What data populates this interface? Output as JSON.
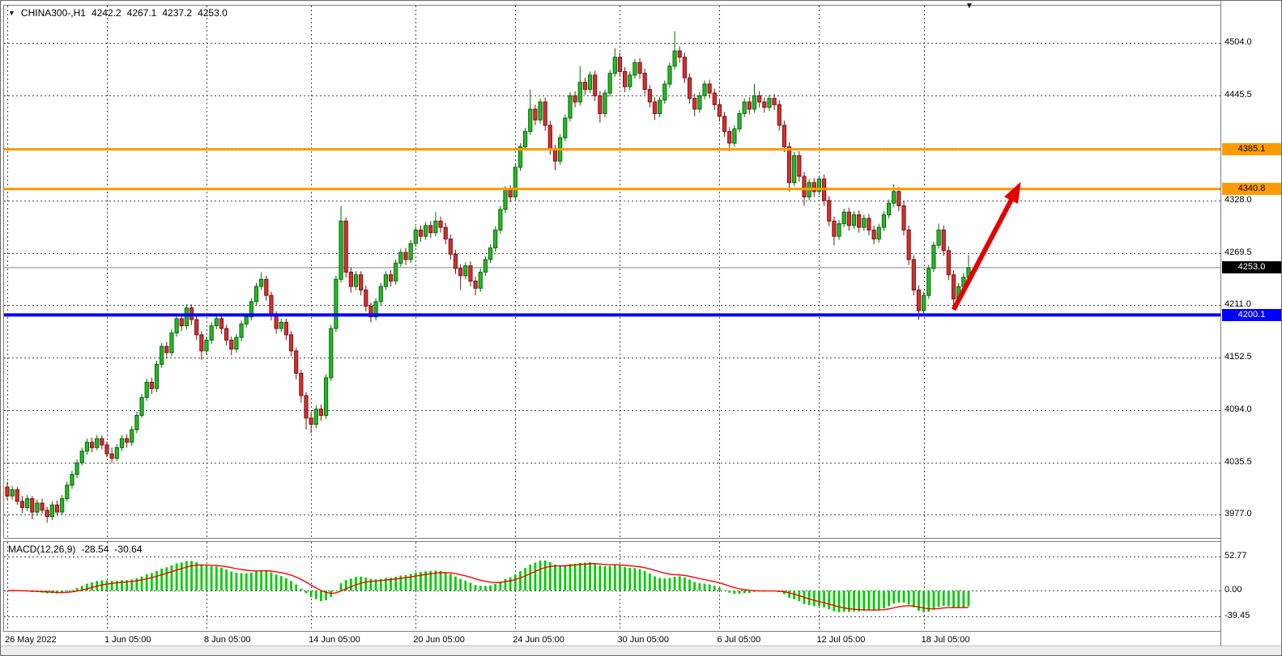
{
  "header": {
    "title": "CHINA300-,H1",
    "open": "4242.2",
    "high": "4267.1",
    "low": "4237.2",
    "close": "4253.0"
  },
  "ui": {
    "header_marker": "▼",
    "shift_marker": "▼"
  },
  "colors": {
    "up": "#28b828",
    "up_edge": "#066a06",
    "down": "#d43030",
    "down_edge": "#7a1414",
    "grid": "#4a4a4a",
    "hline_orange": "#ff9b00",
    "hline_blue": "#0000ff",
    "macd_hist": "#00cc00",
    "macd_signal": "#ff0000",
    "arrow": "#e60000",
    "current_line": "#888888"
  },
  "chart_data": {
    "type": "candlestick",
    "symbol": "CHINA300-",
    "timeframe": "H1",
    "title": "CHINA300-,H1",
    "last_ohlc": {
      "open": 4242.2,
      "high": 4267.1,
      "low": 4237.2,
      "close": 4253.0
    },
    "price_axis": {
      "gridlines": [
        4504.0,
        4445.5,
        4387.0,
        4328.0,
        4269.5,
        4211.0,
        4152.5,
        4094.0,
        4035.5,
        3977.0
      ],
      "labels": [
        {
          "text": "4504.0",
          "price": 4504.0
        },
        {
          "text": "4445.5",
          "price": 4445.5
        },
        {
          "text": "4328.0",
          "price": 4328.0
        },
        {
          "text": "4269.5",
          "price": 4269.5
        },
        {
          "text": "4211.0",
          "price": 4211.0
        },
        {
          "text": "4152.5",
          "price": 4152.5
        },
        {
          "text": "4094.0",
          "price": 4094.0
        },
        {
          "text": "4035.5",
          "price": 4035.5
        },
        {
          "text": "3977.0",
          "price": 3977.0
        }
      ]
    },
    "time_axis": {
      "ticks": [
        {
          "bar": 0,
          "label": "26 May 2022"
        },
        {
          "bar": 20,
          "label": "1 Jun 05:00"
        },
        {
          "bar": 40,
          "label": "8 Jun 05:00"
        },
        {
          "bar": 61,
          "label": "14 Jun 05:00"
        },
        {
          "bar": 82,
          "label": "20 Jun 05:00"
        },
        {
          "bar": 102,
          "label": "24 Jun 05:00"
        },
        {
          "bar": 123,
          "label": "30 Jun 05:00"
        },
        {
          "bar": 143,
          "label": "6 Jul 05:00"
        },
        {
          "bar": 163,
          "label": "12 Jul 05:00"
        },
        {
          "bar": 184,
          "label": "18 Jul 05:00"
        }
      ]
    },
    "lines": [
      {
        "name": "resistance-line-1",
        "price": 4385.1,
        "label": "4385.1",
        "color": "#ff9b00",
        "width": 3
      },
      {
        "name": "resistance-line-2",
        "price": 4340.8,
        "label": "4340.8",
        "color": "#ff9b00",
        "width": 3
      },
      {
        "name": "support-line",
        "price": 4200.1,
        "label": "4200.1",
        "color": "#0000ff",
        "width": 4
      }
    ],
    "current_price": {
      "price": 4253.0,
      "label": "4253.0"
    },
    "arrow": {
      "from_bar": 190,
      "from_price": 4206,
      "to_bar": 203.5,
      "to_price": 4349,
      "color": "#e60000"
    },
    "indicator": {
      "label": "MACD(12,26,9)",
      "fast": 12,
      "slow": 26,
      "signal_period": 9,
      "value_main": "-28.54",
      "value_signal": "-30.64",
      "axis": [
        {
          "text": "52.77",
          "value": 52.77
        },
        {
          "text": "0.00",
          "value": 0.0
        },
        {
          "text": "-39.45",
          "value": -39.45
        }
      ],
      "note": "histogram (MACD line) and red signal line are computed from candle closes with periods 12/26/9"
    },
    "candles": [
      [
        4008,
        4014,
        3994,
        3998
      ],
      [
        3998,
        4009,
        3994,
        4005
      ],
      [
        4005,
        4008,
        3988,
        3992
      ],
      [
        3992,
        3998,
        3979,
        3985
      ],
      [
        3985,
        3999,
        3981,
        3995
      ],
      [
        3995,
        3998,
        3972,
        3980
      ],
      [
        3980,
        3994,
        3976,
        3990
      ],
      [
        3990,
        3995,
        3978,
        3982
      ],
      [
        3982,
        3986,
        3968,
        3975
      ],
      [
        3975,
        3992,
        3971,
        3988
      ],
      [
        3988,
        3993,
        3976,
        3980
      ],
      [
        3980,
        3999,
        3977,
        3995
      ],
      [
        3995,
        4014,
        3992,
        4010
      ],
      [
        4010,
        4026,
        4006,
        4022
      ],
      [
        4022,
        4039,
        4018,
        4035
      ],
      [
        4035,
        4052,
        4032,
        4048
      ],
      [
        4048,
        4062,
        4044,
        4058
      ],
      [
        4058,
        4063,
        4047,
        4052
      ],
      [
        4052,
        4066,
        4049,
        4062
      ],
      [
        4062,
        4066,
        4050,
        4055
      ],
      [
        4055,
        4059,
        4041,
        4045
      ],
      [
        4045,
        4052,
        4035,
        4040
      ],
      [
        4040,
        4056,
        4037,
        4052
      ],
      [
        4052,
        4066,
        4048,
        4062
      ],
      [
        4062,
        4067,
        4052,
        4058
      ],
      [
        4058,
        4076,
        4054,
        4072
      ],
      [
        4072,
        4092,
        4068,
        4088
      ],
      [
        4088,
        4112,
        4085,
        4108
      ],
      [
        4108,
        4129,
        4104,
        4125
      ],
      [
        4125,
        4130,
        4112,
        4118
      ],
      [
        4118,
        4149,
        4114,
        4145
      ],
      [
        4145,
        4169,
        4141,
        4165
      ],
      [
        4165,
        4170,
        4152,
        4158
      ],
      [
        4158,
        4184,
        4154,
        4180
      ],
      [
        4180,
        4200,
        4176,
        4196
      ],
      [
        4196,
        4201,
        4182,
        4188
      ],
      [
        4188,
        4212,
        4184,
        4208
      ],
      [
        4208,
        4212,
        4189,
        4195
      ],
      [
        4195,
        4199,
        4172,
        4178
      ],
      [
        4178,
        4182,
        4150,
        4160
      ],
      [
        4160,
        4176,
        4156,
        4172
      ],
      [
        4172,
        4192,
        4168,
        4188
      ],
      [
        4188,
        4200,
        4184,
        4196
      ],
      [
        4196,
        4200,
        4179,
        4185
      ],
      [
        4185,
        4189,
        4166,
        4172
      ],
      [
        4172,
        4176,
        4155,
        4162
      ],
      [
        4162,
        4179,
        4158,
        4175
      ],
      [
        4175,
        4194,
        4171,
        4190
      ],
      [
        4190,
        4202,
        4186,
        4198
      ],
      [
        4198,
        4219,
        4194,
        4215
      ],
      [
        4215,
        4236,
        4211,
        4232
      ],
      [
        4232,
        4248,
        4228,
        4240
      ],
      [
        4240,
        4244,
        4216,
        4222
      ],
      [
        4222,
        4226,
        4194,
        4200
      ],
      [
        4200,
        4204,
        4179,
        4185
      ],
      [
        4185,
        4196,
        4181,
        4192
      ],
      [
        4192,
        4196,
        4172,
        4178
      ],
      [
        4178,
        4182,
        4154,
        4160
      ],
      [
        4160,
        4164,
        4128,
        4135
      ],
      [
        4135,
        4139,
        4102,
        4110
      ],
      [
        4110,
        4114,
        4072,
        4085
      ],
      [
        4085,
        4092,
        4068,
        4078
      ],
      [
        4078,
        4099,
        4074,
        4095
      ],
      [
        4095,
        4100,
        4082,
        4088
      ],
      [
        4088,
        4134,
        4084,
        4130
      ],
      [
        4130,
        4189,
        4126,
        4185
      ],
      [
        4185,
        4244,
        4181,
        4240
      ],
      [
        4240,
        4322,
        4236,
        4305
      ],
      [
        4305,
        4309,
        4242,
        4248
      ],
      [
        4248,
        4253,
        4225,
        4232
      ],
      [
        4232,
        4249,
        4228,
        4245
      ],
      [
        4245,
        4249,
        4222,
        4228
      ],
      [
        4228,
        4233,
        4204,
        4210
      ],
      [
        4210,
        4214,
        4192,
        4198
      ],
      [
        4198,
        4219,
        4194,
        4215
      ],
      [
        4215,
        4236,
        4211,
        4232
      ],
      [
        4232,
        4249,
        4228,
        4245
      ],
      [
        4245,
        4250,
        4232,
        4238
      ],
      [
        4238,
        4262,
        4234,
        4258
      ],
      [
        4258,
        4274,
        4254,
        4270
      ],
      [
        4270,
        4275,
        4256,
        4262
      ],
      [
        4262,
        4284,
        4258,
        4280
      ],
      [
        4280,
        4299,
        4276,
        4295
      ],
      [
        4295,
        4300,
        4282,
        4288
      ],
      [
        4288,
        4304,
        4284,
        4300
      ],
      [
        4300,
        4305,
        4286,
        4292
      ],
      [
        4292,
        4315,
        4288,
        4305
      ],
      [
        4305,
        4310,
        4292,
        4298
      ],
      [
        4298,
        4303,
        4279,
        4285
      ],
      [
        4285,
        4290,
        4262,
        4268
      ],
      [
        4268,
        4273,
        4246,
        4252
      ],
      [
        4252,
        4257,
        4228,
        4244
      ],
      [
        4244,
        4259,
        4240,
        4255
      ],
      [
        4255,
        4260,
        4232,
        4238
      ],
      [
        4238,
        4243,
        4222,
        4230
      ],
      [
        4230,
        4252,
        4226,
        4248
      ],
      [
        4248,
        4266,
        4244,
        4262
      ],
      [
        4262,
        4279,
        4258,
        4275
      ],
      [
        4275,
        4299,
        4271,
        4295
      ],
      [
        4295,
        4322,
        4291,
        4318
      ],
      [
        4318,
        4344,
        4314,
        4340
      ],
      [
        4340,
        4345,
        4326,
        4332
      ],
      [
        4332,
        4369,
        4328,
        4365
      ],
      [
        4365,
        4392,
        4361,
        4388
      ],
      [
        4388,
        4409,
        4384,
        4405
      ],
      [
        4405,
        4452,
        4401,
        4430
      ],
      [
        4430,
        4435,
        4412,
        4418
      ],
      [
        4418,
        4442,
        4414,
        4438
      ],
      [
        4438,
        4443,
        4406,
        4412
      ],
      [
        4412,
        4417,
        4379,
        4385
      ],
      [
        4385,
        4390,
        4362,
        4372
      ],
      [
        4372,
        4402,
        4368,
        4398
      ],
      [
        4398,
        4424,
        4394,
        4420
      ],
      [
        4420,
        4449,
        4416,
        4445
      ],
      [
        4445,
        4450,
        4432,
        4438
      ],
      [
        4438,
        4478,
        4434,
        4460
      ],
      [
        4460,
        4465,
        4446,
        4452
      ],
      [
        4452,
        4472,
        4448,
        4468
      ],
      [
        4468,
        4473,
        4439,
        4445
      ],
      [
        4445,
        4450,
        4415,
        4425
      ],
      [
        4425,
        4452,
        4421,
        4448
      ],
      [
        4448,
        4474,
        4444,
        4470
      ],
      [
        4470,
        4498,
        4466,
        4488
      ],
      [
        4488,
        4493,
        4466,
        4472
      ],
      [
        4472,
        4477,
        4449,
        4455
      ],
      [
        4455,
        4472,
        4451,
        4468
      ],
      [
        4468,
        4486,
        4464,
        4482
      ],
      [
        4482,
        4487,
        4464,
        4470
      ],
      [
        4470,
        4475,
        4446,
        4452
      ],
      [
        4452,
        4457,
        4432,
        4438
      ],
      [
        4438,
        4443,
        4418,
        4425
      ],
      [
        4425,
        4444,
        4421,
        4440
      ],
      [
        4440,
        4462,
        4436,
        4458
      ],
      [
        4458,
        4482,
        4454,
        4478
      ],
      [
        4478,
        4517,
        4474,
        4495
      ],
      [
        4495,
        4500,
        4482,
        4488
      ],
      [
        4488,
        4493,
        4459,
        4465
      ],
      [
        4465,
        4470,
        4436,
        4442
      ],
      [
        4442,
        4447,
        4422,
        4430
      ],
      [
        4430,
        4449,
        4426,
        4445
      ],
      [
        4445,
        4462,
        4441,
        4458
      ],
      [
        4458,
        4463,
        4442,
        4448
      ],
      [
        4448,
        4453,
        4429,
        4435
      ],
      [
        4435,
        4440,
        4416,
        4422
      ],
      [
        4422,
        4427,
        4399,
        4405
      ],
      [
        4405,
        4410,
        4383,
        4392
      ],
      [
        4392,
        4412,
        4388,
        4408
      ],
      [
        4408,
        4429,
        4404,
        4425
      ],
      [
        4425,
        4442,
        4421,
        4438
      ],
      [
        4438,
        4443,
        4424,
        4430
      ],
      [
        4430,
        4458,
        4426,
        4445
      ],
      [
        4445,
        4450,
        4432,
        4438
      ],
      [
        4438,
        4443,
        4426,
        4432
      ],
      [
        4432,
        4446,
        4428,
        4442
      ],
      [
        4442,
        4447,
        4429,
        4435
      ],
      [
        4435,
        4440,
        4406,
        4412
      ],
      [
        4412,
        4417,
        4382,
        4388
      ],
      [
        4388,
        4393,
        4338,
        4348
      ],
      [
        4348,
        4382,
        4344,
        4378
      ],
      [
        4378,
        4383,
        4349,
        4355
      ],
      [
        4355,
        4360,
        4322,
        4332
      ],
      [
        4332,
        4352,
        4328,
        4348
      ],
      [
        4348,
        4353,
        4332,
        4338
      ],
      [
        4338,
        4356,
        4334,
        4352
      ],
      [
        4352,
        4357,
        4322,
        4328
      ],
      [
        4328,
        4333,
        4299,
        4305
      ],
      [
        4305,
        4310,
        4278,
        4288
      ],
      [
        4288,
        4306,
        4284,
        4302
      ],
      [
        4302,
        4319,
        4298,
        4315
      ],
      [
        4315,
        4320,
        4294,
        4300
      ],
      [
        4300,
        4316,
        4296,
        4312
      ],
      [
        4312,
        4317,
        4292,
        4298
      ],
      [
        4298,
        4312,
        4294,
        4308
      ],
      [
        4308,
        4313,
        4289,
        4295
      ],
      [
        4295,
        4300,
        4279,
        4285
      ],
      [
        4285,
        4302,
        4281,
        4298
      ],
      [
        4298,
        4316,
        4294,
        4312
      ],
      [
        4312,
        4329,
        4308,
        4325
      ],
      [
        4325,
        4346,
        4321,
        4338
      ],
      [
        4338,
        4343,
        4316,
        4322
      ],
      [
        4322,
        4327,
        4289,
        4295
      ],
      [
        4295,
        4300,
        4256,
        4262
      ],
      [
        4262,
        4267,
        4222,
        4228
      ],
      [
        4228,
        4233,
        4195,
        4205
      ],
      [
        4205,
        4226,
        4201,
        4222
      ],
      [
        4222,
        4256,
        4218,
        4252
      ],
      [
        4252,
        4282,
        4248,
        4278
      ],
      [
        4278,
        4302,
        4274,
        4295
      ],
      [
        4295,
        4300,
        4266,
        4272
      ],
      [
        4272,
        4277,
        4239,
        4245
      ],
      [
        4245,
        4250,
        4206,
        4218
      ],
      [
        4218,
        4236,
        4214,
        4232
      ],
      [
        4232,
        4247,
        4228,
        4242.2
      ],
      [
        4242.2,
        4267.1,
        4237.2,
        4253.0
      ]
    ]
  }
}
